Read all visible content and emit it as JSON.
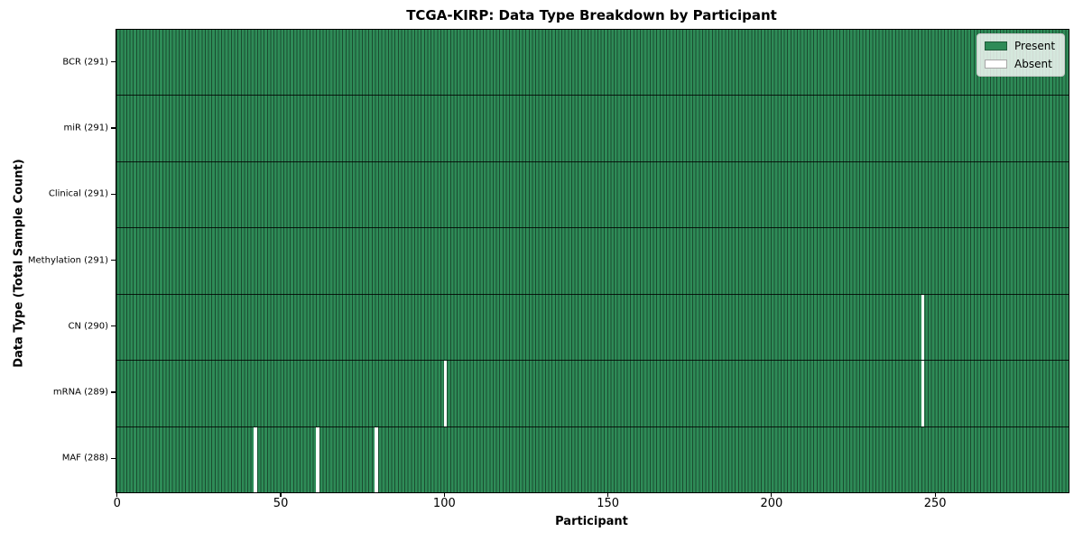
{
  "chart_data": {
    "type": "heatmap",
    "title": "TCGA-KIRP: Data Type Breakdown by Participant",
    "xlabel": "Participant",
    "ylabel": "Data Type (Total Sample Count)",
    "n_participants": 291,
    "x_ticks": [
      0,
      50,
      100,
      150,
      200,
      250
    ],
    "rows": [
      {
        "label": "BCR (291)",
        "data_type": "BCR",
        "present_count": 291,
        "absent_participants": []
      },
      {
        "label": "miR (291)",
        "data_type": "miR",
        "present_count": 291,
        "absent_participants": []
      },
      {
        "label": "Clinical (291)",
        "data_type": "Clinical",
        "present_count": 291,
        "absent_participants": []
      },
      {
        "label": "Methylation (291)",
        "data_type": "Methylation",
        "present_count": 291,
        "absent_participants": []
      },
      {
        "label": "CN (290)",
        "data_type": "CN",
        "present_count": 290,
        "absent_participants": [
          246
        ]
      },
      {
        "label": "mRNA (289)",
        "data_type": "mRNA",
        "present_count": 289,
        "absent_participants": [
          100,
          246
        ]
      },
      {
        "label": "MAF (288)",
        "data_type": "MAF",
        "present_count": 288,
        "absent_participants": [
          42,
          61,
          79
        ]
      }
    ],
    "legend": {
      "position": "upper right",
      "entries": [
        {
          "label": "Present",
          "color": "#2e8b57"
        },
        {
          "label": "Absent",
          "color": "#ffffff"
        }
      ]
    },
    "colors": {
      "present": "#2e8b57",
      "absent": "#ffffff",
      "bar_edge": "#1a4c30",
      "row_separator": "rgba(0,0,0,0.82)"
    },
    "layout": {
      "grid": "off",
      "legend_visible": true,
      "x_range_participants": [
        0,
        291
      ]
    }
  }
}
